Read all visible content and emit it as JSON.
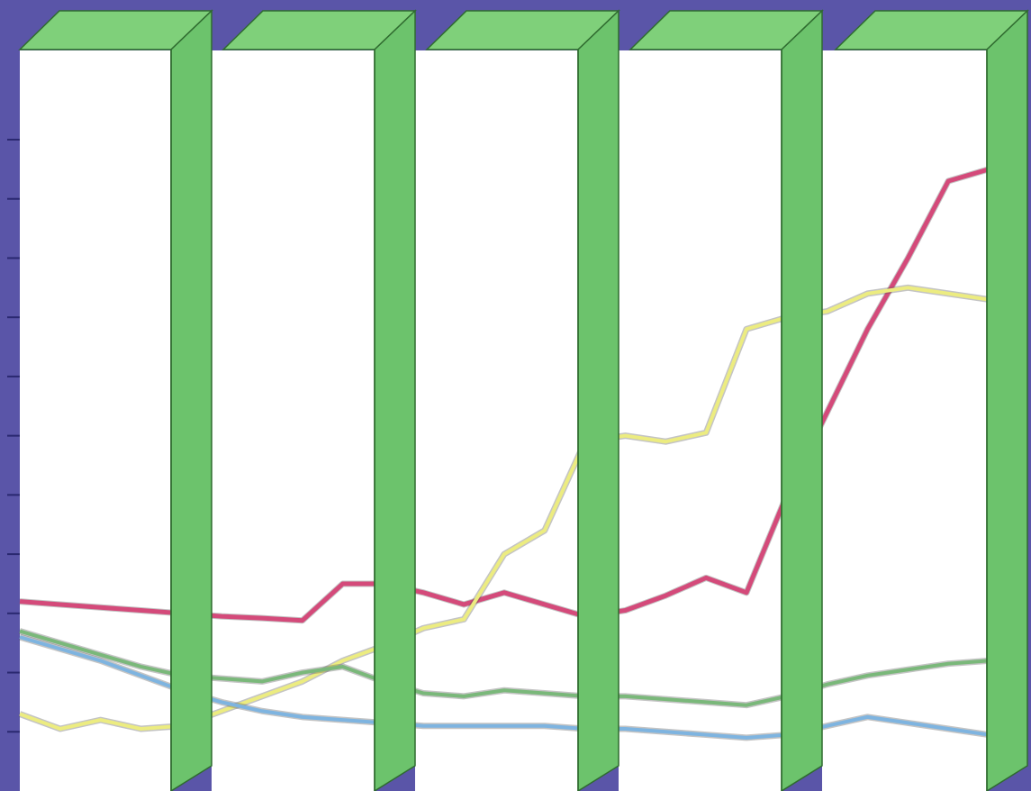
{
  "chart_data": {
    "type": "line",
    "title": "",
    "xlabel": "",
    "ylabel": "",
    "x": [
      1,
      2,
      3,
      4,
      5,
      6,
      7,
      8,
      9,
      10,
      11,
      12,
      13,
      14,
      15,
      16,
      17,
      18,
      19,
      20,
      21,
      22,
      23,
      24,
      25
    ],
    "xlim": [
      1,
      25
    ],
    "ylim": [
      0,
      11
    ],
    "y_ticks": [
      1,
      2,
      3,
      4,
      5,
      6,
      7,
      8,
      9,
      10,
      11
    ],
    "grid": false,
    "legend": "none",
    "series": [
      {
        "color": "#d44a7a",
        "values": [
          3.2,
          3.15,
          3.1,
          3.05,
          3.0,
          2.95,
          2.92,
          2.88,
          3.5,
          3.5,
          3.35,
          3.15,
          3.35,
          3.15,
          2.95,
          3.05,
          3.3,
          3.6,
          3.35,
          5.0,
          6.4,
          7.8,
          9.0,
          10.3,
          10.5
        ]
      },
      {
        "color": "#ecec80",
        "values": [
          1.3,
          1.05,
          1.2,
          1.05,
          1.1,
          1.35,
          1.6,
          1.85,
          2.2,
          2.45,
          2.75,
          2.9,
          4.0,
          4.4,
          5.9,
          6.0,
          5.9,
          6.05,
          7.8,
          8.0,
          8.1,
          8.4,
          8.5,
          8.4,
          8.3
        ]
      },
      {
        "color": "#7ab87a",
        "values": [
          2.7,
          2.5,
          2.3,
          2.1,
          1.95,
          1.9,
          1.85,
          2.0,
          2.1,
          1.85,
          1.65,
          1.6,
          1.7,
          1.65,
          1.6,
          1.6,
          1.55,
          1.5,
          1.45,
          1.6,
          1.8,
          1.95,
          2.05,
          2.15,
          2.2
        ]
      },
      {
        "color": "#7eb4e0",
        "values": [
          2.6,
          2.4,
          2.2,
          1.95,
          1.7,
          1.5,
          1.35,
          1.25,
          1.2,
          1.15,
          1.1,
          1.1,
          1.1,
          1.1,
          1.05,
          1.05,
          1.0,
          0.95,
          0.9,
          0.95,
          1.1,
          1.25,
          1.15,
          1.05,
          0.95
        ]
      }
    ]
  },
  "colors": {
    "background": "#5a55a8",
    "plot_area": "#ffffff",
    "column_front": "#6cc36c",
    "column_top": "#7fd07a",
    "column_side": "#58a858",
    "column_edge": "#2f6b2f"
  }
}
